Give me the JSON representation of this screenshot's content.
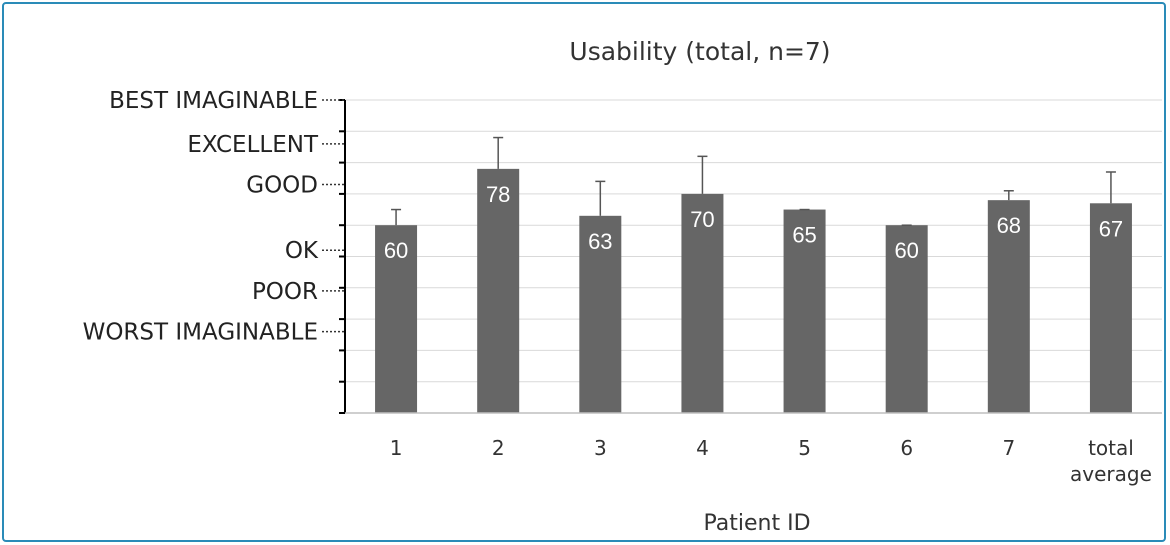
{
  "chart_data": {
    "type": "bar",
    "title": "Usability (total, n=7)",
    "xlabel": "Patient ID",
    "ylabel": "",
    "ylim": [
      0,
      100
    ],
    "grid": true,
    "categories": [
      [
        "1"
      ],
      [
        "2"
      ],
      [
        "3"
      ],
      [
        "4"
      ],
      [
        "5"
      ],
      [
        "6"
      ],
      [
        "7"
      ],
      [
        "total",
        "average"
      ]
    ],
    "values": [
      60,
      78,
      63,
      70,
      65,
      60,
      68,
      67
    ],
    "error_upper": [
      65,
      88,
      74,
      82,
      65,
      60,
      71,
      77
    ],
    "data_labels": [
      "60",
      "78",
      "63",
      "70",
      "65",
      "60",
      "68",
      "67"
    ],
    "rating_scale": [
      {
        "label": "BEST IMAGINABLE",
        "value": 100
      },
      {
        "label": "EXCELLENT",
        "value": 86
      },
      {
        "label": "GOOD",
        "value": 73
      },
      {
        "label": "OK",
        "value": 52
      },
      {
        "label": "POOR",
        "value": 39
      },
      {
        "label": "WORST IMAGINABLE",
        "value": 26
      }
    ],
    "colors": {
      "bar": "#666666",
      "grid": "#d9d9d9",
      "axis": "#000000"
    }
  }
}
